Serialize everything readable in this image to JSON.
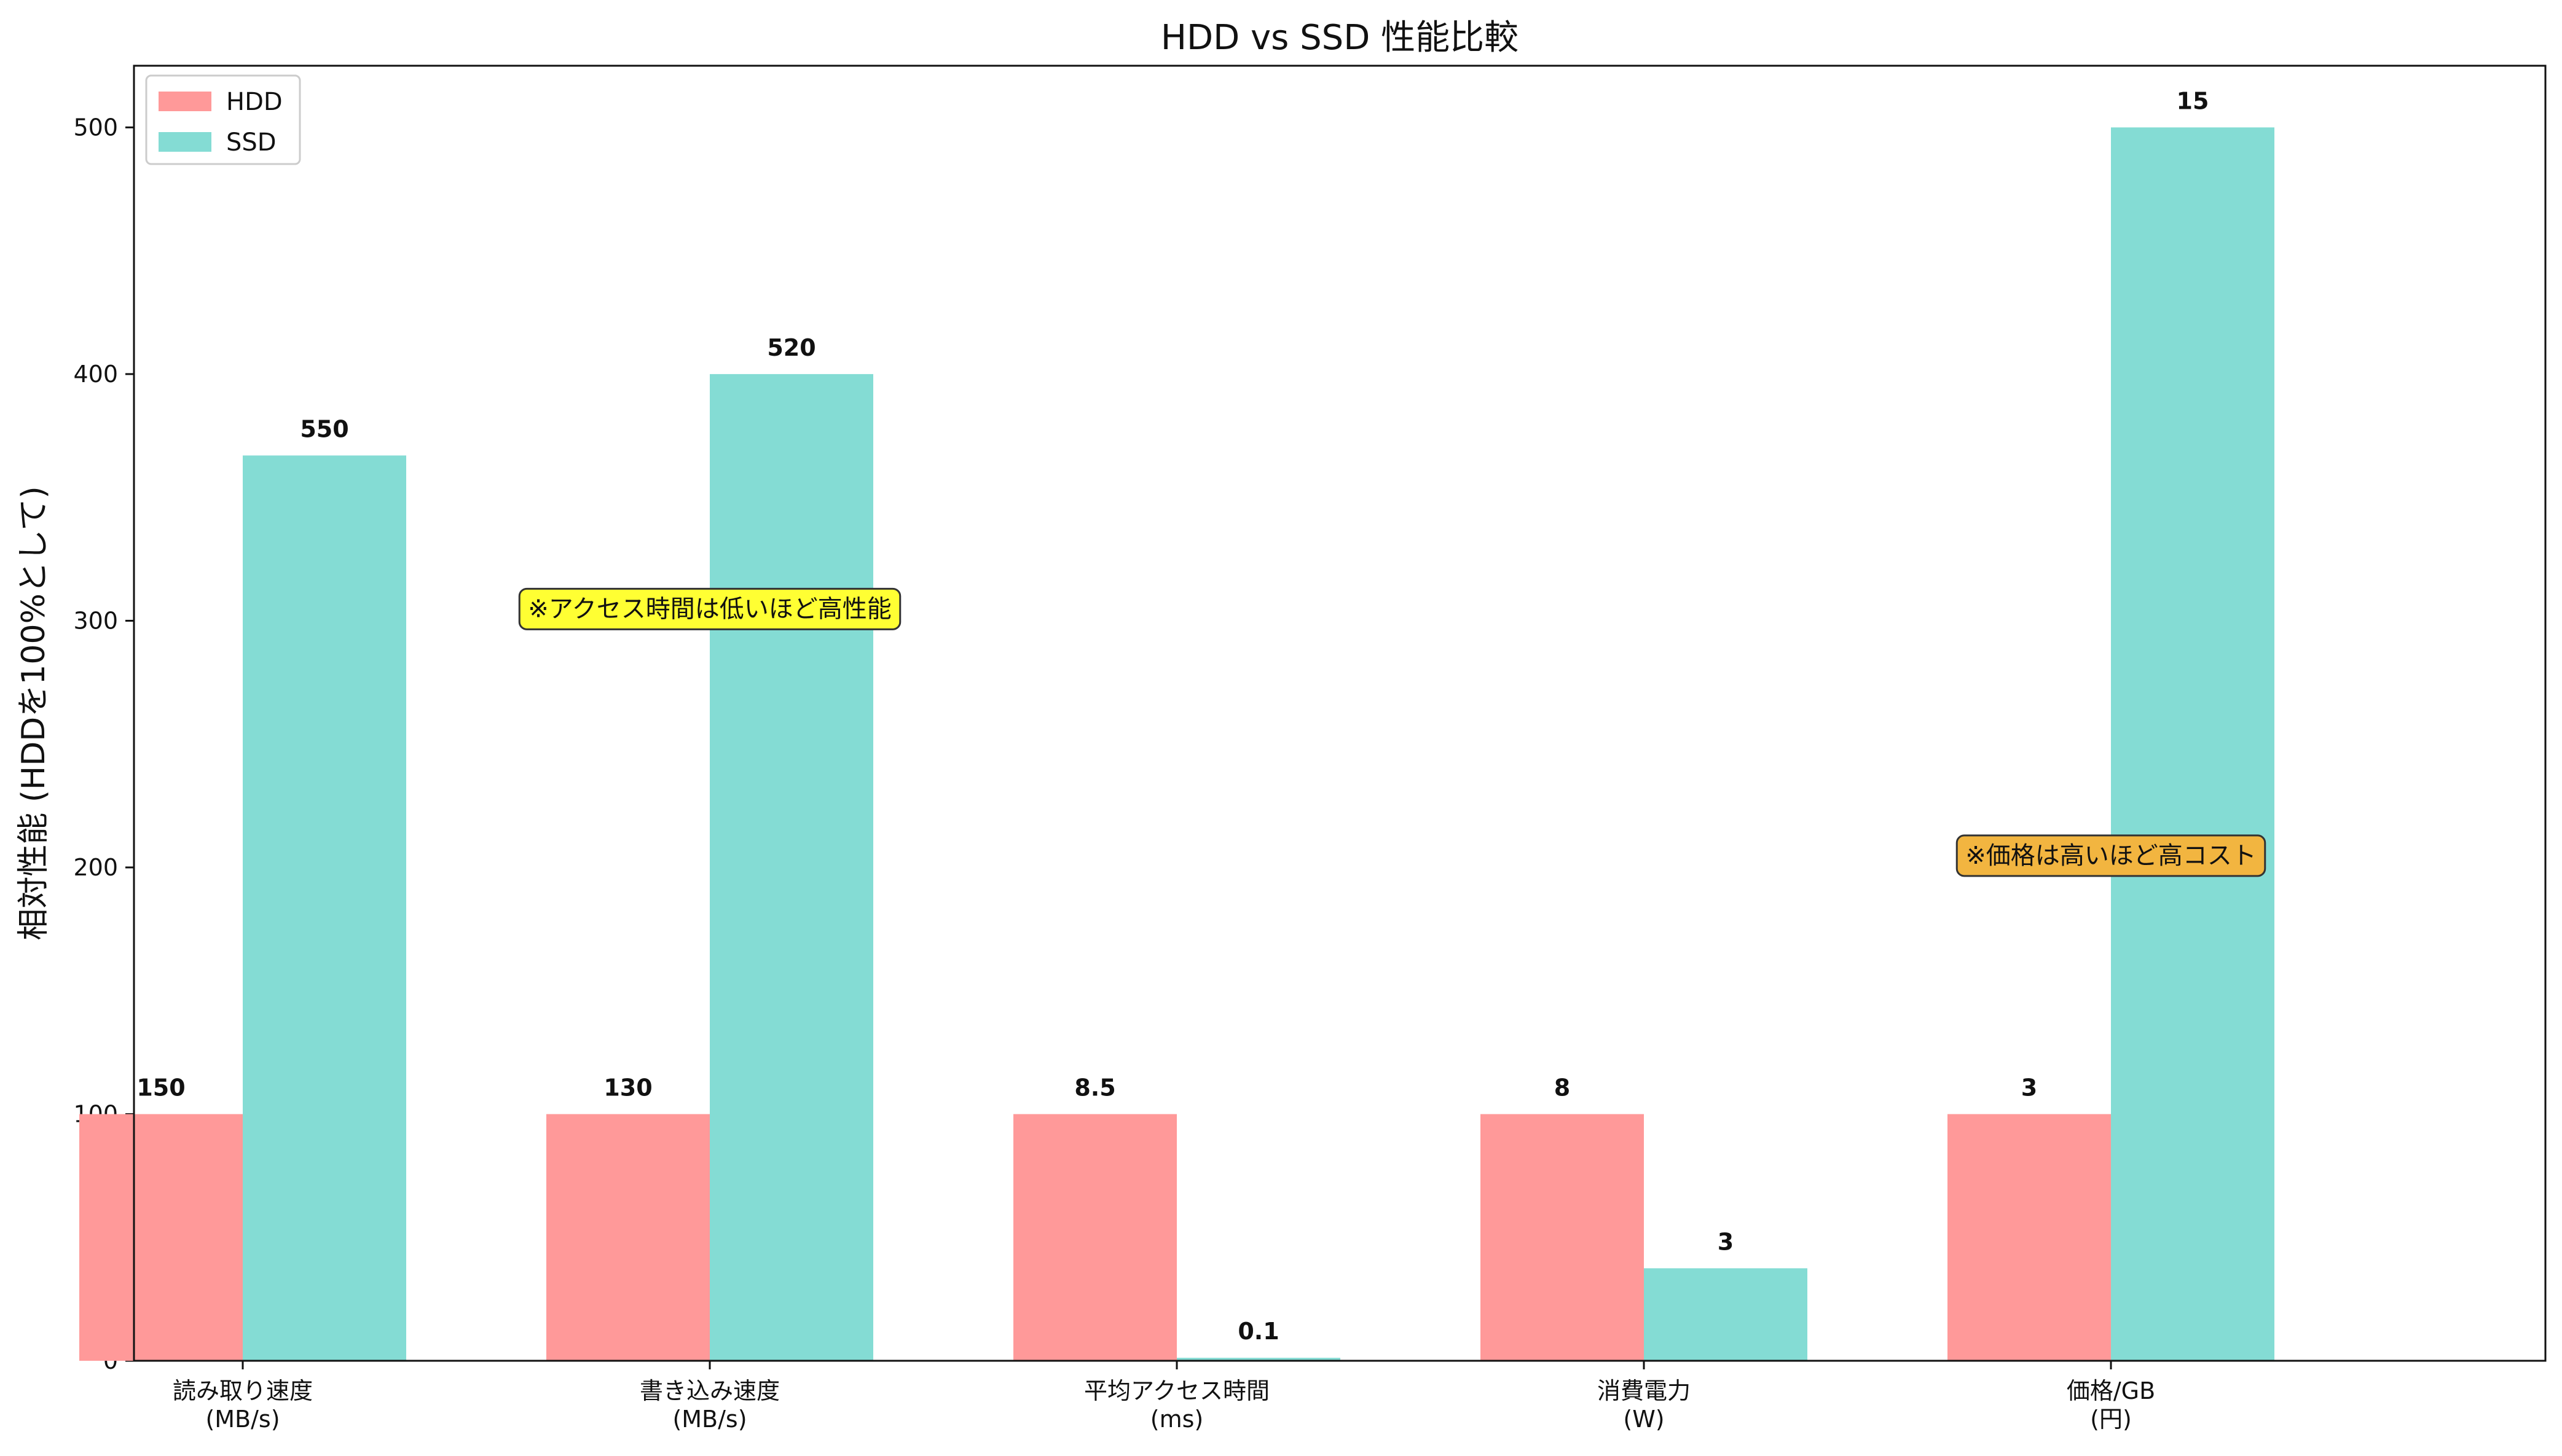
{
  "chart_data": {
    "type": "bar",
    "title": "HDD vs SSD 性能比較",
    "ylabel": "相対性能 (HDDを100%として)",
    "xlabel": "",
    "ylim": [
      0,
      525
    ],
    "yticks": [
      0,
      100,
      200,
      300,
      400,
      500
    ],
    "categories": [
      [
        "読み取り速度",
        "(MB/s)"
      ],
      [
        "書き込み速度",
        "(MB/s)"
      ],
      [
        "平均アクセス時間",
        "(ms)"
      ],
      [
        "消費電力",
        "(W)"
      ],
      [
        "価格/GB",
        "(円)"
      ]
    ],
    "series": [
      {
        "name": "HDD",
        "color": "#FF9999",
        "values": [
          100,
          100,
          100,
          100,
          100
        ],
        "labels": [
          "150",
          "130",
          "8.5",
          "8",
          "3"
        ]
      },
      {
        "name": "SSD",
        "color": "#84DCD4",
        "values": [
          367,
          400,
          1.2,
          37.5,
          500
        ],
        "labels": [
          "550",
          "520",
          "0.1",
          "3",
          "15"
        ]
      }
    ],
    "legend_position": "top-left",
    "grid": false,
    "annotations": [
      {
        "text": "※アクセス時間は低いほど高性能",
        "category_index": 1,
        "y": 305,
        "color": "#FFFF33"
      },
      {
        "text": "※価格は高いほど高コスト",
        "category_index": 4,
        "y": 205,
        "color": "#F2B540"
      }
    ]
  }
}
